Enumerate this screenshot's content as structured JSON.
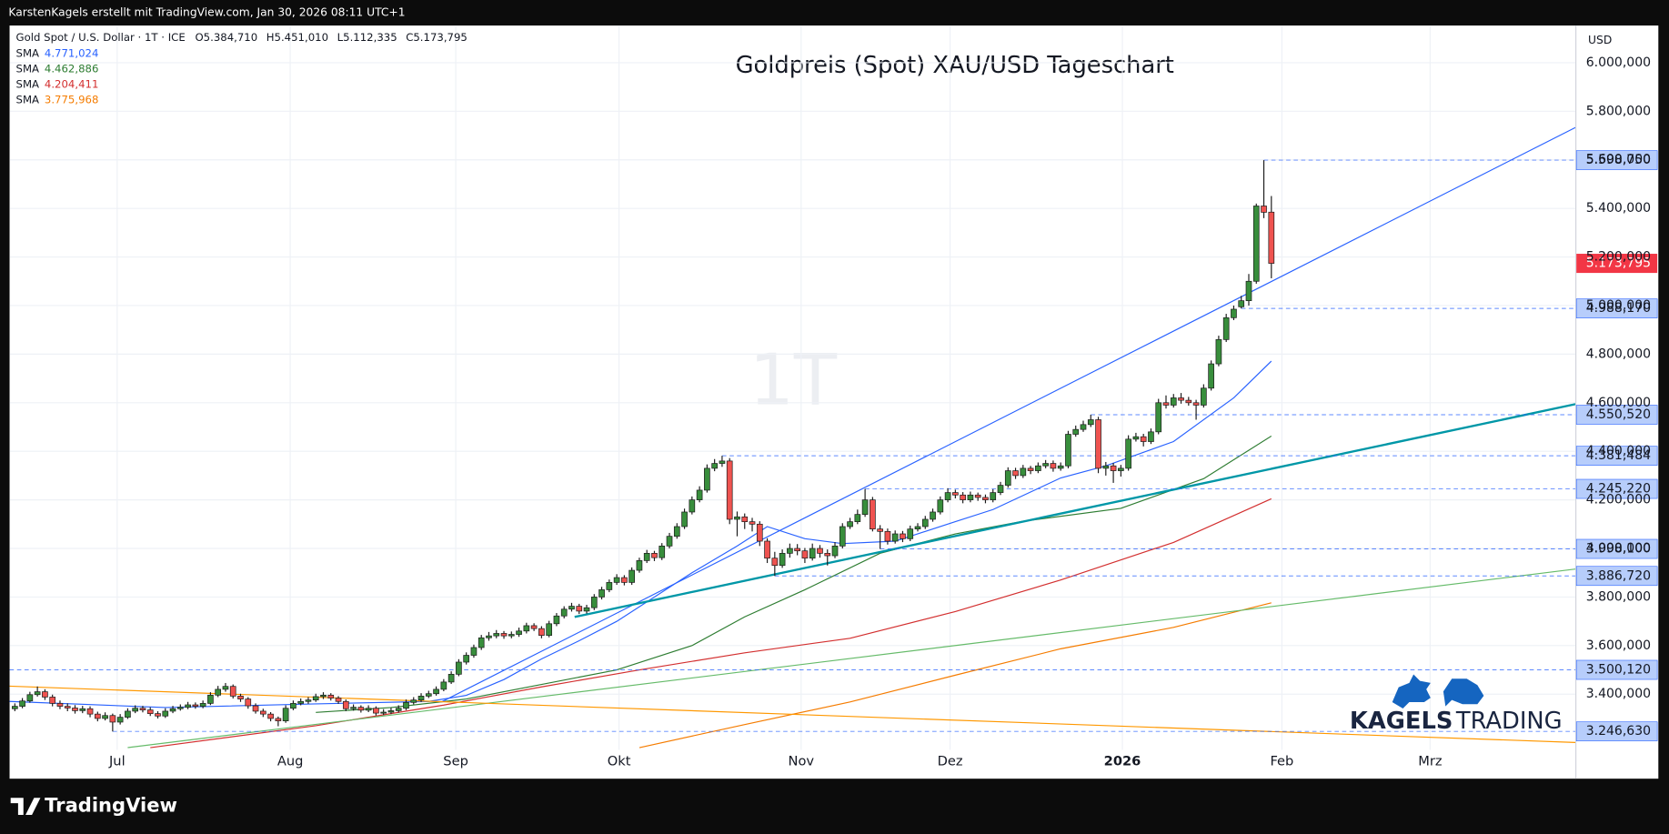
{
  "chart_data": {
    "type": "candlestick",
    "header": "KarstenKagels erstellt mit TradingView.com, Jan 30, 2026 08:11 UTC+1",
    "title": "Goldpreis (Spot) XAU/USD Tageschart",
    "symbol": "Gold Spot / U.S. Dollar · 1T · ICE",
    "ohlc_labels": [
      "O5.384,710",
      "H5.451,010",
      "L5.112,335",
      "C5.173,795"
    ],
    "watermark": "1T",
    "currency": "USD",
    "brand": [
      "KAGELS",
      "TRADING"
    ],
    "footer": "TradingView",
    "up_color": "#388e3c",
    "down_color": "#ef5350",
    "outline_color": "#1b1b1b",
    "xlim": [
      -0.7,
      207.4
    ],
    "ylim": [
      3052,
      6153
    ],
    "grid": true,
    "xticks": [
      {
        "value": 13.6,
        "label": "Jul"
      },
      {
        "value": 36.6,
        "label": "Aug"
      },
      {
        "value": 58.6,
        "label": "Sep"
      },
      {
        "value": 80.3,
        "label": "Okt"
      },
      {
        "value": 104.5,
        "label": "Nov"
      },
      {
        "value": 124.3,
        "label": "Dez"
      },
      {
        "value": 147.2,
        "label": "2026",
        "bold": true
      },
      {
        "value": 168.4,
        "label": "Feb"
      },
      {
        "value": 188.1,
        "label": "Mrz"
      }
    ],
    "yticks": [
      {
        "value": 3400,
        "label": "3.400,000"
      },
      {
        "value": 3600,
        "label": "3.600,000"
      },
      {
        "value": 3800,
        "label": "3.800,000"
      },
      {
        "value": 4000,
        "label": "4.000,000"
      },
      {
        "value": 4200,
        "label": "4.200,000"
      },
      {
        "value": 4400,
        "label": "4.400,000"
      },
      {
        "value": 4600,
        "label": "4.600,000"
      },
      {
        "value": 4800,
        "label": "4.800,000"
      },
      {
        "value": 5000,
        "label": "5.000,000"
      },
      {
        "value": 5200,
        "label": "5.200,000"
      },
      {
        "value": 5400,
        "label": "5.400,000"
      },
      {
        "value": 5600,
        "label": "5.600,000"
      },
      {
        "value": 5800,
        "label": "5.800,000"
      },
      {
        "value": 6000,
        "label": "6.000,000"
      }
    ],
    "open": [
      3340,
      3350,
      3372,
      3398,
      3410,
      3388,
      3362,
      3350,
      3343,
      3332,
      3340,
      3318,
      3300,
      3312,
      3285,
      3305,
      3330,
      3342,
      3335,
      3320,
      3310,
      3330,
      3340,
      3346,
      3356,
      3350,
      3362,
      3396,
      3420,
      3432,
      3392,
      3380,
      3352,
      3330,
      3318,
      3300,
      3290,
      3342,
      3362,
      3370,
      3376,
      3390,
      3396,
      3384,
      3370,
      3340,
      3346,
      3334,
      3342,
      3322,
      3326,
      3332,
      3342,
      3366,
      3376,
      3392,
      3402,
      3420,
      3450,
      3482,
      3532,
      3560,
      3592,
      3632,
      3640,
      3650,
      3640,
      3646,
      3660,
      3682,
      3670,
      3642,
      3690,
      3722,
      3750,
      3762,
      3742,
      3756,
      3800,
      3830,
      3860,
      3880,
      3860,
      3910,
      3950,
      3980,
      3962,
      4010,
      4050,
      4090,
      4150,
      4200,
      4240,
      4330,
      4350,
      4360,
      4120,
      4130,
      4110,
      4100,
      4030,
      3960,
      3930,
      3980,
      4000,
      3990,
      3960,
      4000,
      3980,
      3970,
      4010,
      4090,
      4110,
      4140,
      4200,
      4080,
      4070,
      4030,
      4060,
      4040,
      4080,
      4090,
      4120,
      4150,
      4200,
      4230,
      4220,
      4200,
      4220,
      4210,
      4200,
      4230,
      4260,
      4320,
      4300,
      4330,
      4320,
      4340,
      4350,
      4330,
      4340,
      4470,
      4490,
      4510,
      4530,
      4330,
      4340,
      4320,
      4330,
      4450,
      4460,
      4440,
      4480,
      4600,
      4590,
      4620,
      4610,
      4600,
      4590,
      4660,
      4760,
      4860,
      4950,
      4995,
      5020,
      5100,
      5410,
      5384.71
    ],
    "high": [
      3362,
      3384,
      3410,
      3432,
      3420,
      3398,
      3374,
      3362,
      3355,
      3352,
      3350,
      3328,
      3325,
      3320,
      3318,
      3342,
      3354,
      3352,
      3346,
      3330,
      3342,
      3352,
      3358,
      3368,
      3366,
      3374,
      3408,
      3434,
      3446,
      3440,
      3402,
      3388,
      3362,
      3340,
      3326,
      3308,
      3354,
      3374,
      3382,
      3388,
      3402,
      3408,
      3404,
      3392,
      3378,
      3358,
      3354,
      3354,
      3350,
      3338,
      3344,
      3354,
      3378,
      3388,
      3404,
      3414,
      3432,
      3462,
      3494,
      3544,
      3572,
      3604,
      3644,
      3656,
      3664,
      3660,
      3658,
      3674,
      3694,
      3692,
      3680,
      3702,
      3734,
      3762,
      3776,
      3772,
      3768,
      3812,
      3842,
      3872,
      3894,
      3890,
      3922,
      3962,
      3994,
      3990,
      4022,
      4064,
      4104,
      4164,
      4214,
      4256,
      4346,
      4368,
      4381.48,
      4372,
      4152,
      4144,
      4126,
      4112,
      4042,
      3986,
      3996,
      4020,
      4018,
      4002,
      4020,
      4014,
      3996,
      4026,
      4104,
      4126,
      4160,
      4245.22,
      4212,
      4096,
      4082,
      4074,
      4072,
      4094,
      4104,
      4134,
      4164,
      4214,
      4248,
      4242,
      4232,
      4234,
      4230,
      4222,
      4244,
      4274,
      4334,
      4332,
      4344,
      4340,
      4354,
      4364,
      4362,
      4354,
      4484,
      4506,
      4526,
      4550.52,
      4542,
      4356,
      4352,
      4344,
      4466,
      4476,
      4472,
      4494,
      4616,
      4630,
      4636,
      4640,
      4624,
      4612,
      4676,
      4774,
      4876,
      4966,
      5000,
      5040,
      5130,
      5420,
      5598.75,
      5451.01
    ],
    "low": [
      3330,
      3342,
      3365,
      3390,
      3376,
      3350,
      3338,
      3330,
      3320,
      3322,
      3305,
      3288,
      3292,
      3246.63,
      3275,
      3298,
      3322,
      3325,
      3310,
      3300,
      3302,
      3322,
      3332,
      3338,
      3340,
      3342,
      3355,
      3388,
      3410,
      3382,
      3368,
      3340,
      3320,
      3306,
      3288,
      3268,
      3282,
      3334,
      3354,
      3360,
      3368,
      3380,
      3374,
      3360,
      3330,
      3332,
      3324,
      3326,
      3312,
      3314,
      3318,
      3324,
      3334,
      3358,
      3368,
      3384,
      3394,
      3412,
      3442,
      3474,
      3522,
      3550,
      3582,
      3620,
      3630,
      3628,
      3630,
      3636,
      3650,
      3660,
      3630,
      3634,
      3680,
      3712,
      3740,
      3730,
      3732,
      3746,
      3790,
      3820,
      3850,
      3848,
      3850,
      3900,
      3940,
      3948,
      3952,
      4000,
      4040,
      4080,
      4140,
      4190,
      4230,
      4318,
      4336,
      4100,
      4050,
      4080,
      4070,
      4010,
      3940,
      3886.72,
      3920,
      3962,
      3972,
      3940,
      3950,
      3962,
      3930,
      3960,
      4000,
      4080,
      4100,
      4130,
      4070,
      3998.1,
      4016,
      4020,
      4026,
      4030,
      4070,
      4080,
      4110,
      4140,
      4190,
      4206,
      4186,
      4190,
      4196,
      4186,
      4190,
      4220,
      4250,
      4286,
      4290,
      4306,
      4310,
      4330,
      4316,
      4320,
      4330,
      4460,
      4480,
      4500,
      4310,
      4300,
      4270,
      4296,
      4320,
      4440,
      4420,
      4430,
      4470,
      4576,
      4580,
      4596,
      4588,
      4530,
      4580,
      4650,
      4750,
      4850,
      4940,
      4988.17,
      5000,
      5090,
      5360,
      5112.335
    ],
    "close": [
      3350,
      3372,
      3398,
      3410,
      3388,
      3362,
      3350,
      3343,
      3332,
      3340,
      3318,
      3300,
      3312,
      3285,
      3305,
      3330,
      3342,
      3335,
      3320,
      3310,
      3330,
      3340,
      3346,
      3356,
      3350,
      3362,
      3396,
      3420,
      3432,
      3392,
      3380,
      3352,
      3330,
      3318,
      3300,
      3290,
      3342,
      3362,
      3370,
      3376,
      3390,
      3396,
      3384,
      3370,
      3340,
      3346,
      3334,
      3342,
      3322,
      3326,
      3332,
      3342,
      3366,
      3376,
      3392,
      3402,
      3420,
      3450,
      3482,
      3532,
      3560,
      3592,
      3632,
      3640,
      3650,
      3640,
      3646,
      3660,
      3682,
      3670,
      3642,
      3690,
      3722,
      3750,
      3762,
      3742,
      3756,
      3800,
      3830,
      3860,
      3880,
      3860,
      3910,
      3950,
      3980,
      3962,
      4010,
      4050,
      4090,
      4150,
      4200,
      4240,
      4330,
      4350,
      4360,
      4120,
      4130,
      4110,
      4100,
      4030,
      3960,
      3930,
      3980,
      4000,
      3990,
      3960,
      4000,
      3980,
      3970,
      4010,
      4090,
      4110,
      4140,
      4200,
      4080,
      4070,
      4030,
      4060,
      4040,
      4080,
      4090,
      4120,
      4150,
      4200,
      4230,
      4220,
      4200,
      4220,
      4210,
      4200,
      4230,
      4260,
      4320,
      4300,
      4330,
      4320,
      4340,
      4350,
      4330,
      4340,
      4470,
      4490,
      4510,
      4530,
      4330,
      4340,
      4320,
      4330,
      4450,
      4460,
      4440,
      4480,
      4600,
      4590,
      4620,
      4610,
      4600,
      4590,
      4660,
      4760,
      4860,
      4950,
      4985,
      5020,
      5100,
      5410,
      5384,
      5173.795
    ],
    "last_price_label": "5.173,795",
    "last_price_color": "#f23645",
    "levels": [
      {
        "value": 5598.75,
        "label": "5.598,750"
      },
      {
        "value": 4988.17,
        "label": "4.988,170"
      },
      {
        "value": 4550.52,
        "label": "4.550,520"
      },
      {
        "value": 4381.48,
        "label": "4.381,484"
      },
      {
        "value": 4245.22,
        "label": "4.245,220"
      },
      {
        "value": 3998.1,
        "label": "3.998,100"
      },
      {
        "value": 3886.72,
        "label": "3.886,720"
      },
      {
        "value": 3500.12,
        "label": "3.500,120"
      },
      {
        "value": 3246.63,
        "label": "3.246,630"
      }
    ],
    "level_color": "#b7cdfb",
    "series": [
      {
        "name": "SMA",
        "color": "#2962ff",
        "value_label": "4.771,024",
        "x": [
          -0.7,
          20,
          40,
          55,
          60,
          65,
          70,
          75,
          80,
          90,
          96,
          100,
          105,
          110,
          117,
          125,
          130,
          139,
          145,
          154,
          162,
          167
        ],
        "values": [
          3370,
          3345,
          3360,
          3370,
          3395,
          3460,
          3545,
          3620,
          3700,
          3900,
          4010,
          4090,
          4040,
          4020,
          4030,
          4110,
          4160,
          4290,
          4340,
          4440,
          4620,
          4771.024
        ]
      },
      {
        "name": "SMA",
        "color": "#2e7d32",
        "value_label": "4.462,886",
        "x": [
          40,
          50,
          60,
          70,
          80,
          90,
          97,
          105,
          115,
          125,
          134,
          147,
          158,
          167
        ],
        "values": [
          3325,
          3345,
          3380,
          3440,
          3500,
          3600,
          3718,
          3830,
          3980,
          4060,
          4112,
          4165,
          4287,
          4462.886
        ]
      },
      {
        "name": "SMA",
        "color": "#d32f2f",
        "value_label": "4.204,411",
        "x": [
          18,
          40,
          57,
          70,
          83,
          97,
          111,
          125,
          139,
          154,
          167
        ],
        "values": [
          3180,
          3270,
          3355,
          3430,
          3500,
          3570,
          3630,
          3740,
          3870,
          4025,
          4204.411
        ]
      },
      {
        "name": "SMA",
        "color": "#f57c00",
        "value_label": "3.775,968",
        "x": [
          83,
          97,
          111,
          125,
          139,
          154,
          167
        ],
        "values": [
          3180,
          3275,
          3368,
          3478,
          3587,
          3675,
          3775.968
        ]
      }
    ],
    "trendlines": [
      {
        "color": "#2962ff",
        "from": [
          56.7,
          3368
        ],
        "to": [
          207.4,
          5733
        ]
      },
      {
        "color": "#0097a7",
        "bold": true,
        "from": [
          74.4,
          3718
        ],
        "to": [
          207.4,
          4594
        ]
      },
      {
        "color": "#66bb6a",
        "from": [
          15,
          3180
        ],
        "to": [
          207.4,
          3915
        ]
      },
      {
        "color": "#ff9800",
        "from": [
          -0.7,
          3433
        ],
        "to": [
          207.4,
          3201
        ]
      }
    ]
  }
}
